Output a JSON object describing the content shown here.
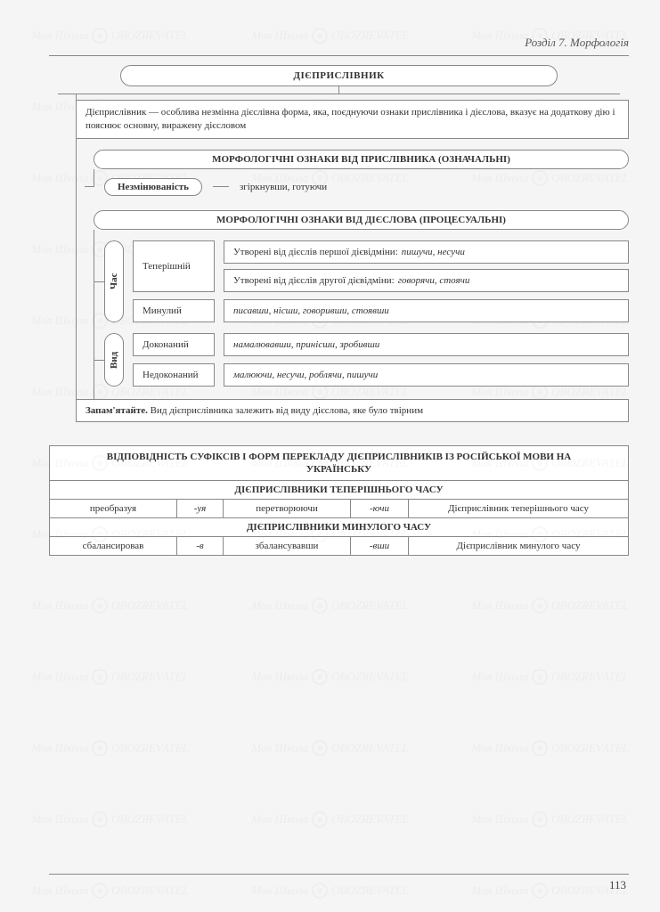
{
  "header": {
    "section": "Розділ 7. Морфологія"
  },
  "main_title": "ДІЄПРИСЛІВНИК",
  "definition": "Дієприслівник — особлива незмінна дієслівна форма, яка, поєднуючи ознаки прислівника і дієслова, вказує на додаткову дію і пояснює основну, виражену дієсловом",
  "sec1": {
    "title": "МОРФОЛОГІЧНІ ОЗНАКИ ВІД ПРИСЛІВНИКА (ОЗНАЧАЛЬНІ)",
    "item_label": "Незмінюваність",
    "item_examples": "згіркнувши, готуючи"
  },
  "sec2": {
    "title": "МОРФОЛОГІЧНІ ОЗНАКИ ВІД ДІЄСЛОВА (ПРОЦЕСУАЛЬНІ)",
    "group1": {
      "side": "Час",
      "r1": {
        "label": "Теперішній",
        "line1_prefix": "Утворені від дієслів першої дієвідміни: ",
        "line1_ex": "пишучи, несучи",
        "line2_prefix": "Утворені від дієслів другої дієвідміни: ",
        "line2_ex": "говорячи, стоячи"
      },
      "r2": {
        "label": "Минулий",
        "ex": "писавши, нісши, говоривши, стоявши"
      }
    },
    "group2": {
      "side": "Вид",
      "r1": {
        "label": "Доконаний",
        "ex": "намалювавши, принісши, зробивши"
      },
      "r2": {
        "label": "Недоконаний",
        "ex": "малюючи, несучи, роблячи, пишучи"
      }
    },
    "note_label": "Запам'ятайте.",
    "note_text": " Вид дієприслівника залежить від виду дієслова, яке було твірним"
  },
  "table": {
    "title": "ВІДПОВІДНІСТЬ СУФІКСІВ І ФОРМ ПЕРЕКЛАДУ ДІЄПРИСЛІВНИКІВ ІЗ РОСІЙСЬКОЇ МОВИ НА УКРАЇНСЬКУ",
    "sub1": "ДІЄПРИСЛІВНИКИ ТЕПЕРІШНЬОГО ЧАСУ",
    "row1": {
      "c1": "преобразуя",
      "c2": "-уя",
      "c3": "перетворюючи",
      "c4": "-ючи",
      "c5": "Дієприслівник теперішнього часу"
    },
    "sub2": "ДІЄПРИСЛІВНИКИ МИНУЛОГО ЧАСУ",
    "row2": {
      "c1": "сбалансировав",
      "c2": "-в",
      "c3": "збалансувавши",
      "c4": "-вши",
      "c5": "Дієприслівник минулого часу"
    }
  },
  "page_number": "113",
  "watermark": {
    "text1": "Моя Школа",
    "text2": "OBOZREVATEL"
  },
  "colors": {
    "border": "#888888",
    "bg": "#f5f5f5",
    "text": "#333333"
  }
}
